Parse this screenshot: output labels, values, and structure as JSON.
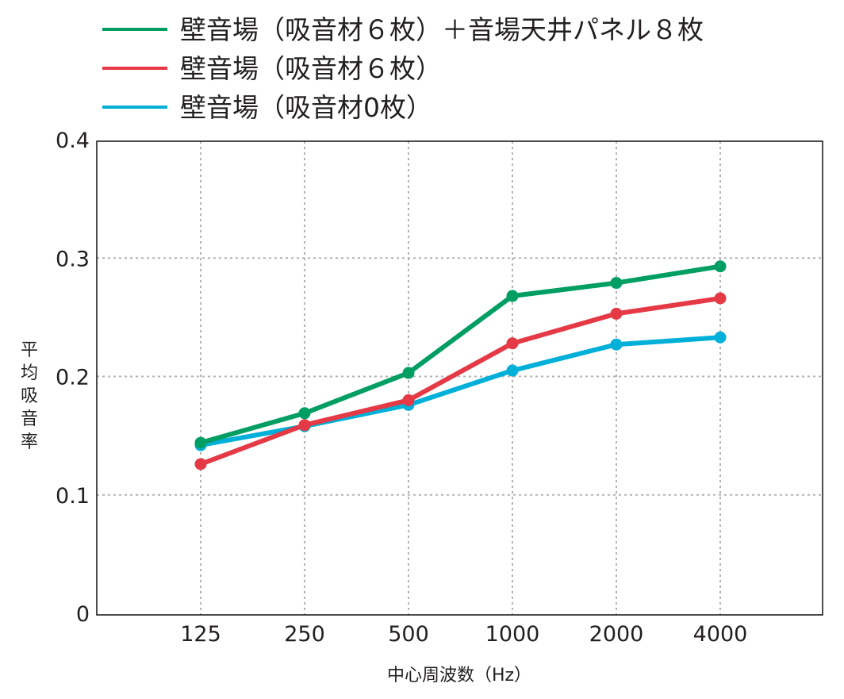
{
  "chart_data": {
    "type": "line",
    "categories": [
      "125",
      "250",
      "500",
      "1000",
      "2000",
      "4000"
    ],
    "series": [
      {
        "name": "壁音場（吸音材６枚）＋音場天井パネル８枚",
        "color": "#009e63",
        "values": [
          0.144,
          0.169,
          0.203,
          0.268,
          0.279,
          0.293
        ]
      },
      {
        "name": "壁音場（吸音材６枚）",
        "color": "#e63946",
        "values": [
          0.126,
          0.159,
          0.18,
          0.228,
          0.253,
          0.266
        ]
      },
      {
        "name": "壁音場（吸音材0枚）",
        "color": "#00b0d8",
        "values": [
          0.142,
          0.158,
          0.176,
          0.205,
          0.227,
          0.233
        ]
      }
    ],
    "title": "",
    "xlabel": "中心周波数（Hz）",
    "ylabel": "平均吸音率",
    "ylim": [
      0,
      0.4
    ],
    "yticks": [
      {
        "value": 0,
        "label": "0"
      },
      {
        "value": 0.1,
        "label": "0.1"
      },
      {
        "value": 0.2,
        "label": "0.2"
      },
      {
        "value": 0.3,
        "label": "0.3"
      },
      {
        "value": 0.4,
        "label": "0.4"
      }
    ],
    "grid": true,
    "legend_position": "top-left"
  }
}
